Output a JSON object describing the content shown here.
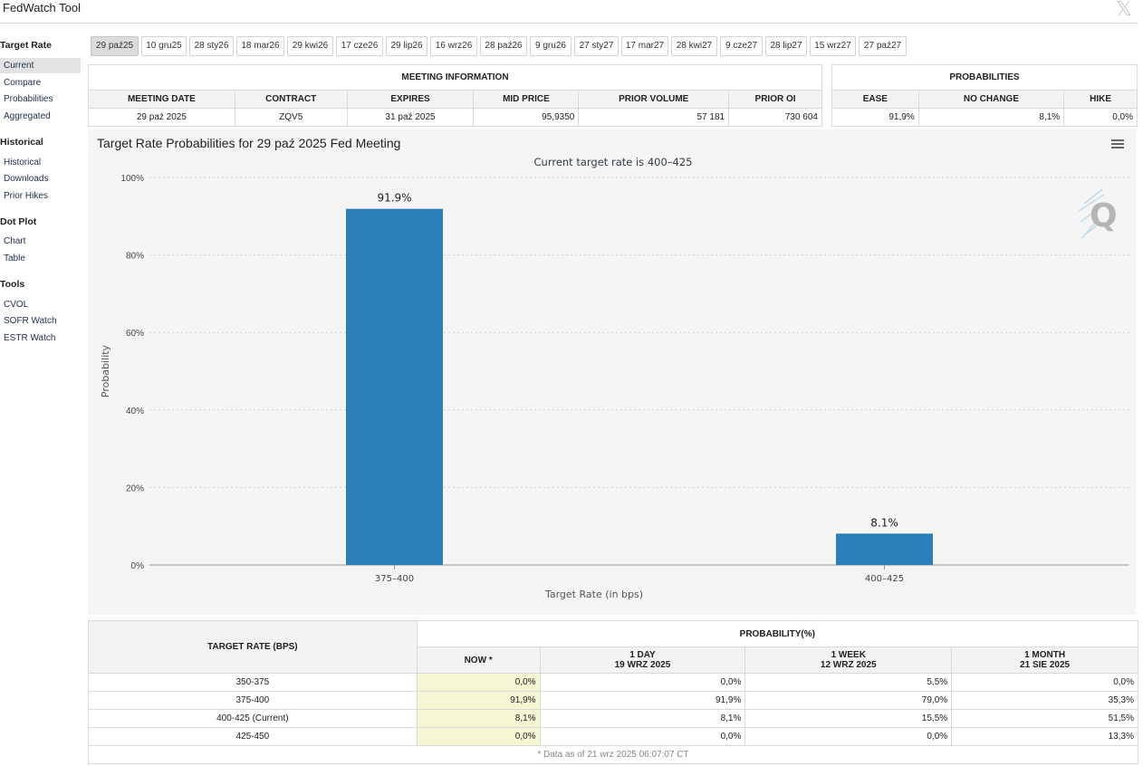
{
  "app": {
    "title": "FedWatch Tool",
    "close_label": "𝕏"
  },
  "sidebar": {
    "sections": [
      {
        "title": "Target Rate",
        "items": [
          "Current",
          "Compare",
          "Probabilities",
          "Aggregated"
        ]
      },
      {
        "title": "Historical",
        "items": [
          "Historical",
          "Downloads",
          "Prior Hikes"
        ]
      },
      {
        "title": "Dot Plot",
        "items": [
          "Chart",
          "Table"
        ]
      },
      {
        "title": "Tools",
        "items": [
          "CVOL",
          "SOFR Watch",
          "ESTR Watch"
        ]
      }
    ],
    "active_item": "Current"
  },
  "meeting_tabs": [
    "29 paź25",
    "10 gru25",
    "28 sty26",
    "18 mar26",
    "29 kwi26",
    "17 cze26",
    "29 lip26",
    "16 wrz26",
    "28 paź26",
    "9 gru26",
    "27 sty27",
    "17 mar27",
    "28 kwi27",
    "9 cze27",
    "28 lip27",
    "15 wrz27",
    "27 paź27"
  ],
  "active_tab": "29 paź25",
  "meeting_info": {
    "title": "MEETING INFORMATION",
    "headers": [
      "MEETING DATE",
      "CONTRACT",
      "EXPIRES",
      "MID PRICE",
      "PRIOR VOLUME",
      "PRIOR OI"
    ],
    "values": [
      "29 paź 2025",
      "ZQV5",
      "31 paź 2025",
      "95,9350",
      "57 181",
      "730 604"
    ]
  },
  "probabilities": {
    "title": "PROBABILITIES",
    "headers": [
      "EASE",
      "NO CHANGE",
      "HIKE"
    ],
    "values": [
      "91,9%",
      "8,1%",
      "0,0%"
    ]
  },
  "chart": {
    "title": "Target Rate Probabilities for 29 paź 2025 Fed Meeting",
    "subtitle": "Current target rate is 400–425"
  },
  "chart_data": {
    "type": "bar",
    "title": "Target Rate Probabilities for 29 paź 2025 Fed Meeting",
    "subtitle": "Current target rate is 400–425",
    "categories": [
      "375–400",
      "400–425"
    ],
    "values": [
      91.9,
      8.1
    ],
    "data_labels": [
      "91.9%",
      "8.1%"
    ],
    "xlabel": "Target Rate (in bps)",
    "ylabel": "Probability",
    "ylim": [
      0,
      100
    ],
    "yticks": [
      "0%",
      "20%",
      "40%",
      "60%",
      "80%",
      "100%"
    ],
    "grid": true,
    "bar_color": "#2b7fb8"
  },
  "bottom": {
    "rate_header": "TARGET RATE (BPS)",
    "prob_header": "PROBABILITY(%)",
    "columns": [
      {
        "line1": "NOW *",
        "line2": ""
      },
      {
        "line1": "1 DAY",
        "line2": "19 WRZ 2025"
      },
      {
        "line1": "1 WEEK",
        "line2": "12 WRZ 2025"
      },
      {
        "line1": "1 MONTH",
        "line2": "21 SIE 2025"
      }
    ],
    "rows": [
      {
        "rate": "350-375",
        "vals": [
          "0,0%",
          "0,0%",
          "5,5%",
          "0,0%"
        ]
      },
      {
        "rate": "375-400",
        "vals": [
          "91,9%",
          "91,9%",
          "79,0%",
          "35,3%"
        ]
      },
      {
        "rate": "400-425 (Current)",
        "vals": [
          "8,1%",
          "8,1%",
          "15,5%",
          "51,5%"
        ]
      },
      {
        "rate": "425-450",
        "vals": [
          "0,0%",
          "0,0%",
          "0,0%",
          "13,3%"
        ]
      }
    ],
    "footnote": "* Data as of 21 wrz 2025 06:07:07 CT"
  }
}
